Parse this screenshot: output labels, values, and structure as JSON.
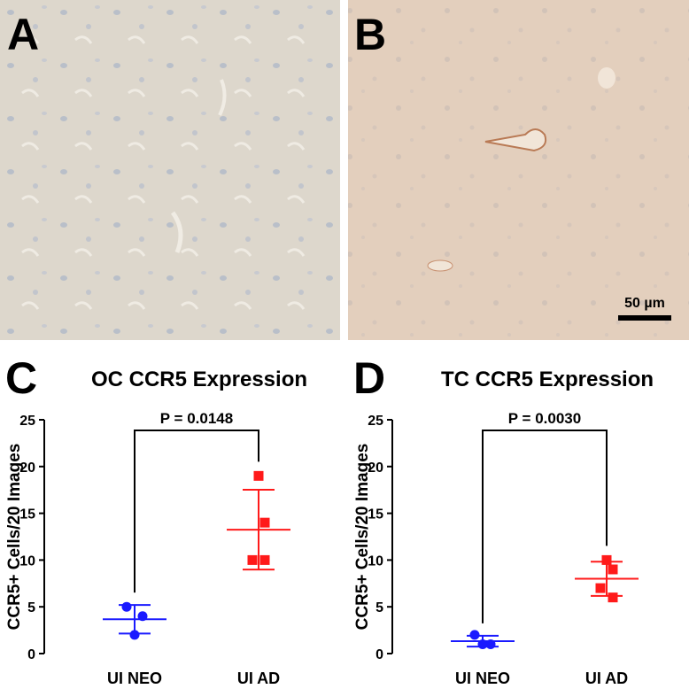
{
  "panels": [
    {
      "label": "A"
    },
    {
      "label": "B",
      "scale_bar": "50 µm"
    }
  ],
  "chart_data": [
    {
      "type": "dot",
      "panel_label": "C",
      "title": "OC CCR5 Expression",
      "ylabel": "CCR5+ Cells/20 Images",
      "annotation": "P = 0.0148",
      "ylim": [
        0,
        25
      ],
      "yticks": [
        0,
        5,
        10,
        15,
        20,
        25
      ],
      "groups": [
        {
          "name": "UI NEO",
          "color": "#1a1aff",
          "values": [
            5,
            4,
            2
          ],
          "mean": 3.67,
          "sd": 1.53
        },
        {
          "name": "UI AD",
          "color": "#ff1a1a",
          "values": [
            19,
            14,
            10,
            10
          ],
          "mean": 13.25,
          "sd": 4.27
        }
      ]
    },
    {
      "type": "dot",
      "panel_label": "D",
      "title": "TC CCR5 Expression",
      "ylabel": "CCR5+ Cells/20 Images",
      "annotation": "P = 0.0030",
      "ylim": [
        0,
        25
      ],
      "yticks": [
        0,
        5,
        10,
        15,
        20,
        25
      ],
      "groups": [
        {
          "name": "UI NEO",
          "color": "#1a1aff",
          "values": [
            2,
            1,
            1
          ],
          "mean": 1.33,
          "sd": 0.58
        },
        {
          "name": "UI AD",
          "color": "#ff1a1a",
          "values": [
            10,
            9,
            7,
            6
          ],
          "mean": 8,
          "sd": 1.83
        }
      ]
    }
  ]
}
